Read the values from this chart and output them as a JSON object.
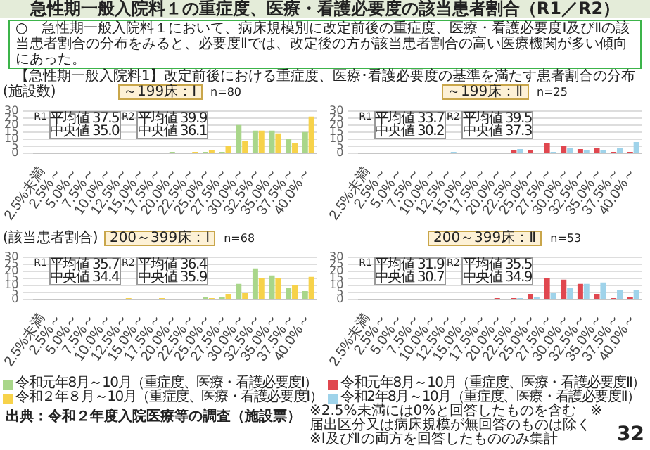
{
  "chart_data": [
    {
      "type": "other",
      "title": "急性期一般入院料１の重症度、医療・看護必要度の該当患者割合（R1／R2）",
      "subtitle": "○　急性期一般入院料１において、病床規模別に改定前後の重症度、医療・看護必要度Ⅰ及びⅡの該当患者割合の分布をみると、必要度Ⅱでは、改定後の方が該当患者割合の高い医療機関が多い傾向にあった。",
      "annotations": [
        "【急性期一般入院料1】改定前後における重症度、医療･看護必要度の基準を満たす患者割合の分布"
      ]
    },
    {
      "type": "bar",
      "title": "～199床：Ⅰ",
      "ylabel": "(施設数)",
      "xlabel": "(該当患者割合)",
      "annotations": [
        "n=80",
        "R1",
        "平均値 37.5",
        "中央値 35.0",
        "R2",
        "平均値 39.9",
        "中央値 36.1"
      ],
      "categories": [
        "2.5%未満",
        "2.5%～",
        "5.0%～",
        "7.5%～",
        "10.0%～",
        "12.5%～",
        "15.0%～",
        "17.5%～",
        "20.0%～",
        "22.5%～",
        "25.0%～",
        "27.5%～",
        "30.0%～",
        "32.5%～",
        "35.0%～",
        "37.5%～",
        "40.0%～"
      ],
      "series": [
        {
          "color": "#a9d68a",
          "values": [
            0,
            0,
            0,
            0,
            0,
            0,
            0,
            0,
            1,
            0,
            1,
            1,
            20,
            16,
            16,
            10,
            15
          ]
        },
        {
          "color": "#f7d24a",
          "values": [
            0,
            0,
            0,
            0,
            0,
            0,
            0,
            0,
            0,
            1,
            2,
            5,
            9,
            16,
            14,
            7,
            26
          ]
        }
      ],
      "ylim": [
        0,
        30
      ],
      "yticks": [
        0,
        5,
        10,
        15,
        20,
        25,
        30
      ],
      "grid": "y"
    },
    {
      "type": "bar",
      "title": "～199床：Ⅱ",
      "annotations": [
        "n=25",
        "R1",
        "平均値 33.7",
        "中央値 30.2",
        "R2",
        "平均値 39.5",
        "中央値 37.3"
      ],
      "categories": [
        "2.5%未満",
        "2.5%～",
        "5.0%～",
        "7.5%～",
        "10.0%～",
        "12.5%～",
        "15.0%～",
        "17.5%～",
        "20.0%～",
        "22.5%～",
        "25.0%～",
        "27.5%～",
        "30.0%～",
        "32.5%～",
        "35.0%～",
        "37.5%～",
        "40.0%～"
      ],
      "series": [
        {
          "color": "#e0474f",
          "values": [
            0,
            0,
            0,
            0,
            0,
            0,
            0,
            0,
            0,
            2,
            2,
            7,
            5,
            3,
            4,
            1,
            1
          ]
        },
        {
          "color": "#9fd3ea",
          "values": [
            0,
            0,
            0,
            0,
            0,
            1,
            0,
            0,
            0,
            3,
            0,
            1,
            4,
            2,
            2,
            4,
            8
          ]
        }
      ],
      "ylim": [
        0,
        30
      ],
      "yticks": [
        0,
        5,
        10,
        15,
        20,
        25,
        30
      ],
      "grid": "y"
    },
    {
      "type": "bar",
      "title": "200～399床：Ⅰ",
      "annotations": [
        "n=68",
        "R1",
        "平均値 35.7",
        "中央値 34.4",
        "R2",
        "平均値 36.4",
        "中央値 35.9"
      ],
      "categories": [
        "2.5%未満",
        "2.5%～",
        "5.0%～",
        "7.5%～",
        "10.0%～",
        "12.5%～",
        "15.0%～",
        "17.5%～",
        "20.0%～",
        "22.5%～",
        "25.0%～",
        "27.5%～",
        "30.0%～",
        "32.5%～",
        "35.0%～",
        "37.5%～",
        "40.0%～"
      ],
      "series": [
        {
          "name": "令和元年8月～10月（重症度、医療・看護必要度Ⅰ）",
          "color": "#a9d68a",
          "values": [
            0,
            0,
            0,
            0,
            0,
            0,
            0,
            0,
            0,
            0,
            2,
            2,
            11,
            22,
            17,
            8,
            6
          ]
        },
        {
          "name": "令和２年８月～10月（重症度、医療・看護必要度Ⅰ）",
          "color": "#f7d24a",
          "values": [
            0,
            0,
            0,
            0,
            0,
            1,
            0,
            1,
            0,
            0,
            1,
            4,
            5,
            15,
            15,
            10,
            16
          ]
        }
      ],
      "ylim": [
        0,
        30
      ],
      "yticks": [
        0,
        5,
        10,
        15,
        20,
        25,
        30
      ],
      "grid": "y",
      "legend": "bottom"
    },
    {
      "type": "bar",
      "title": "200～399床：Ⅱ",
      "annotations": [
        "n=53",
        "R1",
        "平均値 31.9",
        "中央値 30.7",
        "R2",
        "平均値 35.5",
        "中央値 34.9"
      ],
      "categories": [
        "2.5%未満",
        "2.5%～",
        "5.0%～",
        "7.5%～",
        "10.0%～",
        "12.5%～",
        "15.0%～",
        "17.5%～",
        "20.0%～",
        "22.5%～",
        "25.0%～",
        "27.5%～",
        "30.0%～",
        "32.5%～",
        "35.0%～",
        "37.5%～",
        "40.0%～"
      ],
      "series": [
        {
          "name": "令和元年8月～10月（重症度、医療・看護必要度Ⅱ）",
          "color": "#e0474f",
          "values": [
            0,
            0,
            0,
            0,
            0,
            0,
            0,
            0,
            1,
            1,
            4,
            15,
            14,
            11,
            4,
            1,
            2
          ]
        },
        {
          "name": "令和2年8月～10月（重症度、医療・看護必要度Ⅱ）",
          "color": "#9fd3ea",
          "values": [
            0,
            0,
            0,
            0,
            0,
            0,
            0,
            0,
            0,
            1,
            2,
            5,
            8,
            11,
            12,
            7,
            7
          ]
        }
      ],
      "ylim": [
        0,
        30
      ],
      "yticks": [
        0,
        5,
        10,
        15,
        20,
        25,
        30
      ],
      "grid": "y",
      "legend": "bottom"
    },
    {
      "type": "other",
      "annotations": [
        "出典：令和２年度入院医療等の調査（施設票）",
        "※2.5%未満には0%と回答したものを含む　※届出区分又は病床規模が無回答のものは除く",
        "※Ⅰ及びⅡの両方を回答したもののみ集計",
        "32"
      ]
    }
  ]
}
